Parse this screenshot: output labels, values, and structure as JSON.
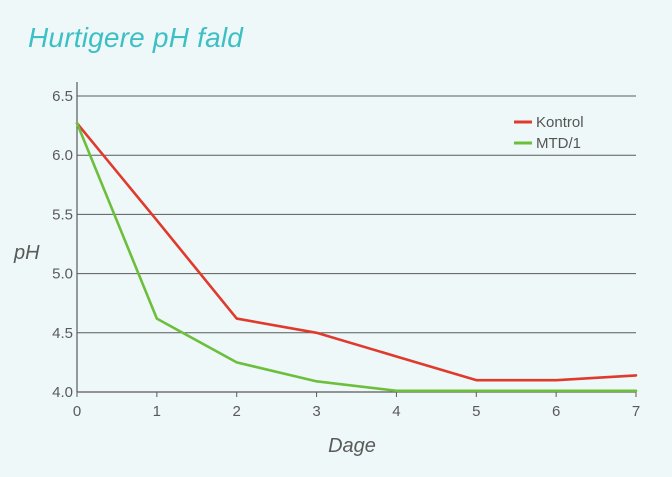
{
  "title": "Hurtigere pH fald",
  "colors": {
    "background": "#eef8f8",
    "title": "#3dbfc6",
    "grid": "#5a5a5a"
  },
  "chart_data": {
    "type": "line",
    "title": "Hurtigere pH fald",
    "xlabel": "Dage",
    "ylabel": "pH",
    "x": [
      0,
      1,
      2,
      3,
      4,
      5,
      6,
      7
    ],
    "xlim": [
      0,
      7
    ],
    "ylim": [
      4.0,
      6.5
    ],
    "xticks": [
      "0",
      "1",
      "2",
      "3",
      "4",
      "5",
      "6",
      "7"
    ],
    "yticks": [
      "4.0",
      "4.5",
      "5.0",
      "5.5",
      "6.0",
      "6.5"
    ],
    "grid": "horizontal",
    "legend_position": "top-right",
    "series": [
      {
        "name": "Kontrol",
        "color": "#e03a2e",
        "values": [
          6.27,
          5.45,
          4.62,
          4.5,
          4.3,
          4.1,
          4.1,
          4.14
        ]
      },
      {
        "name": "MTD/1",
        "color": "#6cbf3c",
        "values": [
          6.27,
          4.62,
          4.25,
          4.09,
          4.01,
          4.01,
          4.01,
          4.01
        ]
      }
    ]
  }
}
